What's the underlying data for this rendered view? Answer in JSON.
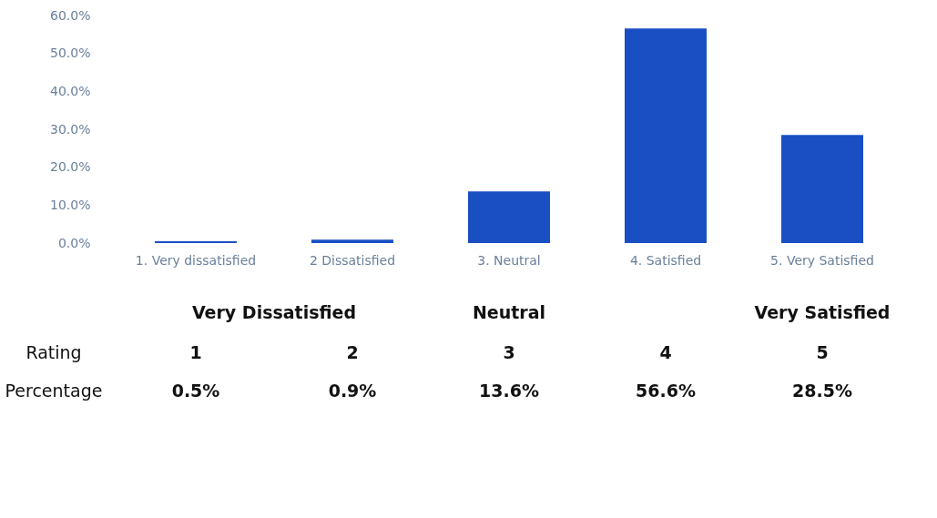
{
  "chart_data": {
    "type": "bar",
    "categories": [
      "1. Very dissatisfied",
      "2 Dissatisfied",
      "3. Neutral",
      "4. Satisfied",
      "5. Very Satisfied"
    ],
    "values": [
      0.5,
      0.9,
      13.6,
      56.6,
      28.5
    ],
    "value_labels": [
      "0.5%",
      "0.9%",
      "13.6%",
      "56.6%",
      "28.5%"
    ],
    "color": "#1a4fc4",
    "ylim": [
      0,
      60
    ],
    "yticks": [
      {
        "value": 0,
        "label": "0.0%"
      },
      {
        "value": 10,
        "label": "10.0%"
      },
      {
        "value": 20,
        "label": "20.0%"
      },
      {
        "value": 30,
        "label": "30.0%"
      },
      {
        "value": 40,
        "label": "40.0%"
      },
      {
        "value": 50,
        "label": "50.0%"
      },
      {
        "value": 60,
        "label": "60.0%"
      }
    ],
    "grid": false,
    "annotations": [
      "Very Dissatisfied",
      "Neutral",
      "Very Satisfied",
      "Rating",
      "1",
      "2",
      "3",
      "4",
      "5",
      "Percentage"
    ]
  }
}
